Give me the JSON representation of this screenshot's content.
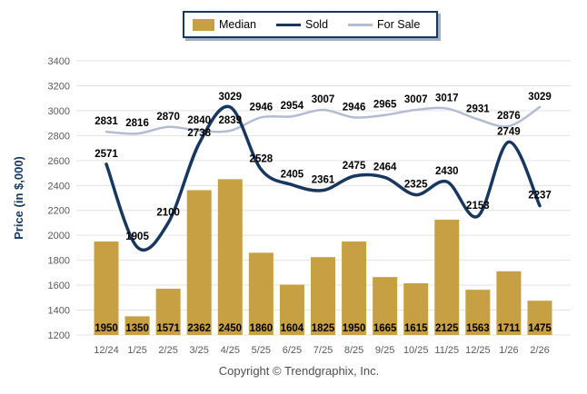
{
  "legend": {
    "items": [
      {
        "label": "Median",
        "swatch": "bar",
        "color": "#C6A042"
      },
      {
        "label": "Sold",
        "swatch": "line",
        "color": "#17375E"
      },
      {
        "label": "For Sale",
        "swatch": "line",
        "color": "#B3BCD2"
      }
    ]
  },
  "footer": {
    "text": "Copyright © Trendgraphix, Inc."
  },
  "colors": {
    "background": "#FFFFFF",
    "grid": "#E3E3E3",
    "axis_text": "#595959",
    "data_label_text": "#000000",
    "legend_border": "#17375E",
    "bar": "#C6A042",
    "sold_line": "#17375E",
    "for_sale_line": "#B3BCD2"
  },
  "chart_data": {
    "type": "combo_bar_line",
    "title": "",
    "xlabel": "",
    "ylabel": "Price (in $,000)",
    "ylim": [
      1200,
      3400
    ],
    "yticks": [
      1200,
      1400,
      1600,
      1800,
      2000,
      2200,
      2400,
      2600,
      2800,
      3000,
      3200,
      3400
    ],
    "grid": true,
    "legend_position": "top",
    "data_labels": true,
    "categories": [
      "12/24",
      "1/25",
      "2/25",
      "3/25",
      "4/25",
      "5/25",
      "6/25",
      "7/25",
      "8/25",
      "9/25",
      "10/25",
      "11/25",
      "12/25",
      "1/26",
      "2/26"
    ],
    "series": [
      {
        "name": "Median",
        "type": "bar",
        "color": "#C6A042",
        "values": [
          1950,
          1350,
          1571,
          2362,
          2450,
          1860,
          1604,
          1825,
          1950,
          1665,
          1615,
          2125,
          1563,
          1711,
          1475
        ]
      },
      {
        "name": "Sold",
        "type": "line",
        "color": "#17375E",
        "values": [
          2571,
          1905,
          2100,
          2738,
          3029,
          2528,
          2405,
          2361,
          2475,
          2464,
          2325,
          2430,
          2153,
          2749,
          2237
        ]
      },
      {
        "name": "For Sale",
        "type": "line",
        "color": "#B3BCD2",
        "values": [
          2831,
          2816,
          2870,
          2840,
          2839,
          2946,
          2954,
          3007,
          2946,
          2965,
          3007,
          3017,
          2931,
          2876,
          3029
        ]
      }
    ]
  }
}
